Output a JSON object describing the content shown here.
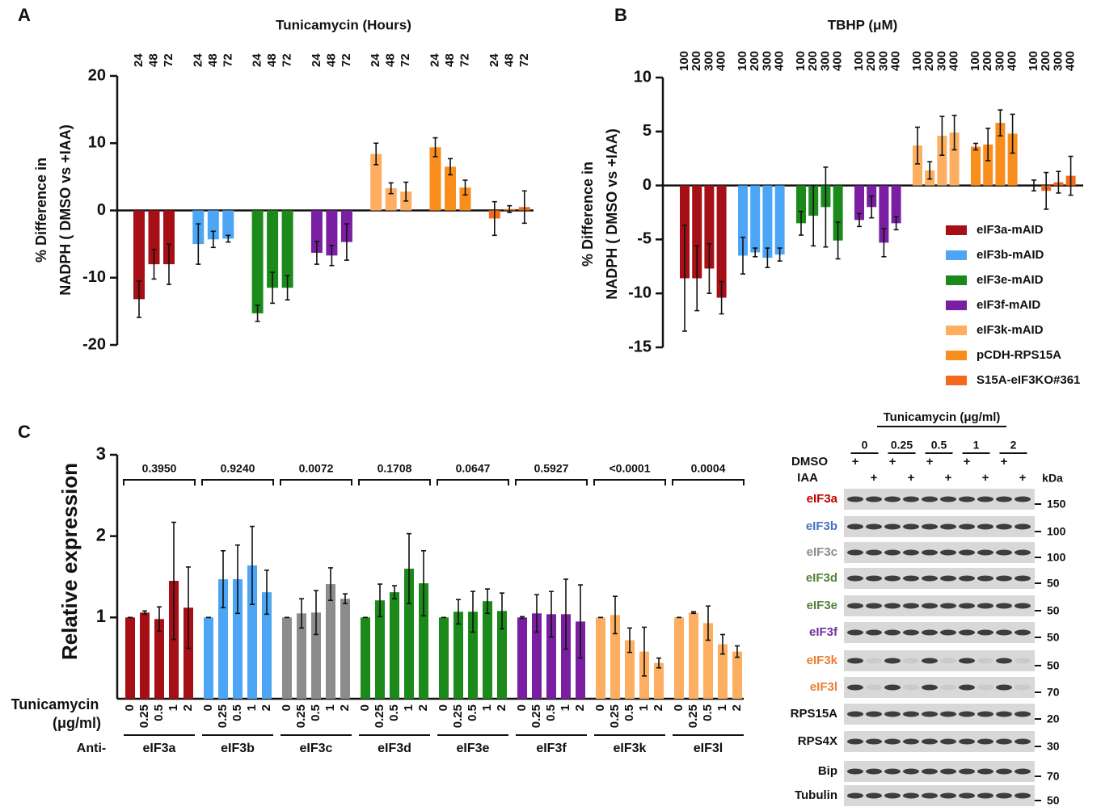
{
  "chart_data": [
    {
      "type": "grouped-bar",
      "panel": "A",
      "title": "Tunicamycin (Hours)",
      "ylabel": [
        "% Difference in",
        "NADPH ( DMSO vs +IAA)"
      ],
      "categories": [
        "24",
        "48",
        "72"
      ],
      "ylim": [
        -20,
        20
      ],
      "yticks": [
        -20,
        -10,
        0,
        10,
        20
      ],
      "series": [
        {
          "color": "#a50f15",
          "values": [
            -13.2,
            -8,
            -8
          ],
          "errors": [
            2.7,
            2.2,
            3
          ]
        },
        {
          "color": "#4da6f5",
          "values": [
            -5,
            -4.3,
            -4.2
          ],
          "errors": [
            3,
            1.2,
            0.5
          ]
        },
        {
          "color": "#1b8a1b",
          "values": [
            -15.3,
            -11.5,
            -11.5
          ],
          "errors": [
            1.2,
            2.3,
            1.8
          ]
        },
        {
          "color": "#7b1fa2",
          "values": [
            -6.3,
            -6.7,
            -4.7
          ],
          "errors": [
            1.7,
            1.5,
            2.7
          ]
        },
        {
          "color": "#fdae61",
          "values": [
            8.4,
            3.3,
            2.8
          ],
          "errors": [
            1.6,
            0.8,
            1.4
          ]
        },
        {
          "color": "#f98e1d",
          "values": [
            9.4,
            6.5,
            3.4
          ],
          "errors": [
            1.4,
            1.2,
            1.1
          ]
        },
        {
          "color": "#f26b1d",
          "values": [
            -1.2,
            0.2,
            0.5
          ],
          "errors": [
            2.5,
            0.5,
            2.4
          ]
        }
      ]
    },
    {
      "type": "grouped-bar",
      "panel": "B",
      "title": "TBHP (μM)",
      "ylabel": [
        "% Difference in",
        "NADPH ( DMSO vs +IAA)"
      ],
      "categories": [
        "100",
        "200",
        "300",
        "400"
      ],
      "ylim": [
        -15,
        10
      ],
      "yticks": [
        -15,
        -10,
        -5,
        0,
        5,
        10
      ],
      "series": [
        {
          "name": "eIF3a-mAID",
          "color": "#a50f15",
          "values": [
            -8.6,
            -8.6,
            -7.7,
            -10.4
          ],
          "errors": [
            4.9,
            3,
            2.3,
            1.5
          ]
        },
        {
          "name": "eIF3b-mAID",
          "color": "#4da6f5",
          "values": [
            -6.5,
            -6.2,
            -6.7,
            -6.4
          ],
          "errors": [
            1.7,
            0.4,
            0.9,
            0.6
          ]
        },
        {
          "name": "eIF3e-mAID",
          "color": "#1b8a1b",
          "values": [
            -3.5,
            -2.8,
            -2,
            -5.1
          ],
          "errors": [
            1.1,
            2.8,
            3.7,
            1.7
          ]
        },
        {
          "name": "eIF3f-mAID",
          "color": "#7b1fa2",
          "values": [
            -3.2,
            -2,
            -5.3,
            -3.5
          ],
          "errors": [
            0.6,
            1,
            1.3,
            0.6
          ]
        },
        {
          "name": "eIF3k-mAID",
          "color": "#fdae61",
          "values": [
            3.7,
            1.4,
            4.6,
            4.9
          ],
          "errors": [
            1.7,
            0.8,
            1.8,
            1.6
          ]
        },
        {
          "name": "pCDH-RPS15A",
          "color": "#f98e1d",
          "values": [
            3.6,
            3.8,
            5.8,
            4.8
          ],
          "errors": [
            0.3,
            1.5,
            1.2,
            1.8
          ]
        },
        {
          "name": "S15A-eIF3KO#361",
          "color": "#f26b1d",
          "values": [
            0,
            -0.5,
            0.3,
            0.9
          ],
          "errors": [
            0.5,
            1.7,
            1,
            1.8
          ]
        }
      ]
    },
    {
      "type": "grouped-bar",
      "panel": "C",
      "ylabel": [
        "Relative expression"
      ],
      "x_row_label": [
        "Tunicamycin",
        "(μg/ml)"
      ],
      "group_row_label": "Anti-",
      "categories": [
        "0",
        "0.25",
        "0.5",
        "1",
        "2"
      ],
      "ylim": [
        0,
        3
      ],
      "yticks": [
        1,
        2,
        3
      ],
      "series": [
        {
          "name": "eIF3a",
          "p_value": "0.3950",
          "color": "#a50f15",
          "values": [
            1,
            1.06,
            0.98,
            1.45,
            1.12
          ],
          "errors": [
            0,
            0.02,
            0.15,
            0.72,
            0.5
          ]
        },
        {
          "name": "eIF3b",
          "p_value": "0.9240",
          "color": "#4da6f5",
          "values": [
            1,
            1.47,
            1.47,
            1.64,
            1.31
          ],
          "errors": [
            0,
            0.35,
            0.42,
            0.48,
            0.27
          ]
        },
        {
          "name": "eIF3c",
          "p_value": "0.0072",
          "color": "#8c8c8c",
          "values": [
            1,
            1.05,
            1.06,
            1.41,
            1.23
          ],
          "errors": [
            0,
            0.18,
            0.27,
            0.2,
            0.06
          ]
        },
        {
          "name": "eIF3d",
          "p_value": "0.1708",
          "color": "#1b8a1b",
          "values": [
            1,
            1.21,
            1.31,
            1.6,
            1.42
          ],
          "errors": [
            0,
            0.2,
            0.08,
            0.43,
            0.4
          ]
        },
        {
          "name": "eIF3e",
          "p_value": "0.0647",
          "color": "#1b8a1b",
          "values": [
            1,
            1.07,
            1.07,
            1.2,
            1.08
          ],
          "errors": [
            0,
            0.15,
            0.25,
            0.15,
            0.22
          ]
        },
        {
          "name": "eIF3f",
          "p_value": "0.5927",
          "color": "#7b1fa2",
          "values": [
            1,
            1.05,
            1.04,
            1.04,
            0.95
          ],
          "errors": [
            0.01,
            0.23,
            0.28,
            0.43,
            0.45
          ]
        },
        {
          "name": "eIF3k",
          "p_value": "<0.0001",
          "color": "#fdae61",
          "values": [
            1,
            1.03,
            0.72,
            0.58,
            0.44
          ],
          "errors": [
            0,
            0.23,
            0.15,
            0.3,
            0.06
          ]
        },
        {
          "name": "eIF3l",
          "p_value": "0.0004",
          "color": "#fdae61",
          "values": [
            1,
            1.06,
            0.93,
            0.67,
            0.58
          ],
          "errors": [
            0,
            0.01,
            0.21,
            0.12,
            0.07
          ]
        }
      ]
    }
  ],
  "blot": {
    "title": "Tunicamycin (μg/ml)",
    "doses": [
      "0",
      "0.25",
      "0.5",
      "1",
      "2"
    ],
    "treatments": [
      {
        "label": "DMSO",
        "sign": "+"
      },
      {
        "label": "IAA",
        "sign": "+"
      }
    ],
    "unit": "kDa",
    "rows": [
      {
        "label": "eIF3a",
        "color": "#c00000",
        "markers": [
          "150"
        ]
      },
      {
        "label": "eIF3b",
        "color": "#4472c4",
        "markers": [
          "100"
        ]
      },
      {
        "label": "eIF3c",
        "color": "#8c8c8c",
        "markers": [
          "100"
        ]
      },
      {
        "label": "eIF3d",
        "color": "#548235",
        "markers": [
          "50"
        ]
      },
      {
        "label": "eIF3e",
        "color": "#548235",
        "markers": [
          "50"
        ]
      },
      {
        "label": "eIF3f",
        "color": "#7030a0",
        "markers": [
          "50"
        ]
      },
      {
        "label": "eIF3k",
        "color": "#ed7d31",
        "markers": [
          "50"
        ],
        "depleted_by_iaa": true
      },
      {
        "label": "eIF3l",
        "color": "#ed7d31",
        "markers": [
          "70"
        ],
        "depleted_by_iaa": true
      },
      {
        "label": "RPS15A",
        "color": "#111111",
        "markers": [
          "20"
        ]
      },
      {
        "label": "RPS4X",
        "color": "#111111",
        "markers": [
          "30"
        ]
      },
      {
        "label": "Bip",
        "color": "#111111",
        "markers": [
          "70"
        ]
      },
      {
        "label": "Tubulin",
        "color": "#111111",
        "markers": [
          "50"
        ]
      }
    ]
  }
}
